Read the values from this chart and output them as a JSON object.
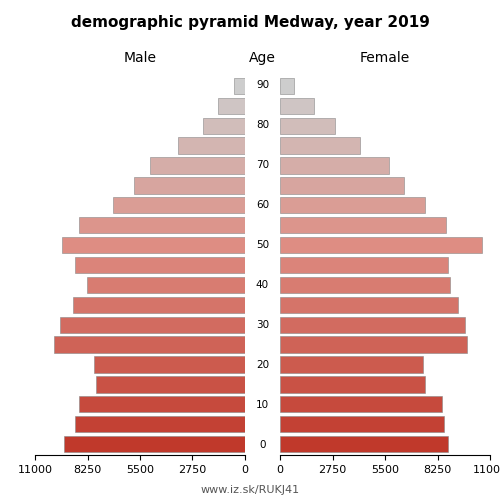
{
  "title": "demographic pyramid Medway, year 2019",
  "label_male": "Male",
  "label_female": "Female",
  "label_age": "Age",
  "ages": [
    0,
    5,
    10,
    15,
    20,
    25,
    30,
    35,
    40,
    45,
    50,
    55,
    60,
    65,
    70,
    75,
    80,
    85,
    90
  ],
  "male": [
    9500,
    8900,
    8700,
    7800,
    7900,
    10000,
    9700,
    9000,
    8300,
    8900,
    9600,
    8700,
    6900,
    5800,
    5000,
    3500,
    2200,
    1400,
    550
  ],
  "female": [
    8800,
    8600,
    8500,
    7600,
    7500,
    9800,
    9700,
    9300,
    8900,
    8800,
    10600,
    8700,
    7600,
    6500,
    5700,
    4200,
    2900,
    1800,
    750
  ],
  "xlim": 11000,
  "xticks": [
    0,
    2750,
    5500,
    8250,
    11000
  ],
  "footer": "www.iz.sk/RUKJ41",
  "bg": "#ffffff",
  "edge_color": "#888888",
  "colors": [
    "#c0392b",
    "#c8413a",
    "#cd4940",
    "#d05047",
    "#d2564d",
    "#d45c52",
    "#d66258",
    "#d86860",
    "#da6e66",
    "#dc766e",
    "#de7e78",
    "#e08c85",
    "#dfa099",
    "#ddb0aa",
    "#d8beba",
    "#d0c8c5",
    "#c8cece",
    "#c8d0d0",
    "#c8d0d0"
  ]
}
